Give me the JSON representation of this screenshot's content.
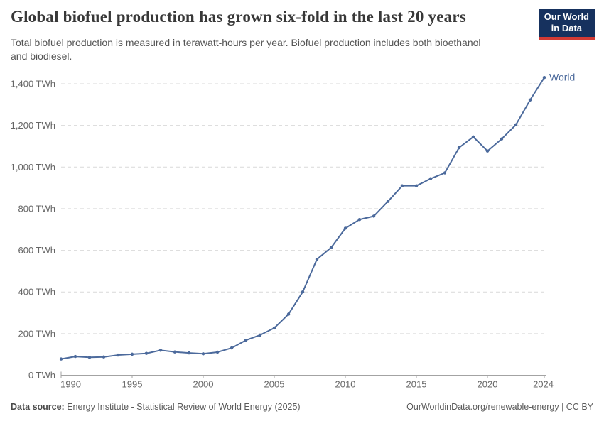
{
  "header": {
    "title": "Global biofuel production has grown six-fold in the last 20 years",
    "subtitle": {
      "line1": "Total biofuel production is measured in terawatt-hours per year. Biofuel production includes both bioethanol",
      "line2": "and biodiesel."
    },
    "logo": {
      "line1": "Our World",
      "line2": "in Data"
    }
  },
  "chart_data": {
    "type": "line",
    "title": "Global biofuel production has grown six-fold in the last 20 years",
    "x": [
      1990,
      1991,
      1992,
      1993,
      1994,
      1995,
      1996,
      1997,
      1998,
      1999,
      2000,
      2001,
      2002,
      2003,
      2004,
      2005,
      2006,
      2007,
      2008,
      2009,
      2010,
      2011,
      2012,
      2013,
      2014,
      2015,
      2016,
      2017,
      2018,
      2019,
      2020,
      2021,
      2022,
      2023,
      2024
    ],
    "series": [
      {
        "name": "World",
        "color": "#4C6A9C",
        "values": [
          78,
          90,
          86,
          88,
          97,
          101,
          105,
          120,
          112,
          107,
          103,
          111,
          131,
          168,
          193,
          227,
          293,
          400,
          557,
          613,
          706,
          748,
          764,
          835,
          910,
          910,
          944,
          972,
          1093,
          1145,
          1077,
          1135,
          1203,
          1322,
          1430
        ]
      }
    ],
    "xlabel": "",
    "ylabel": "",
    "unit": "TWh",
    "xlim": [
      1990,
      2024
    ],
    "ylim": [
      0,
      1400
    ],
    "y_ticks": [
      0,
      200,
      400,
      600,
      800,
      1000,
      1200,
      1400
    ],
    "y_tick_suffix": " TWh",
    "x_ticks": [
      1990,
      1995,
      2000,
      2005,
      2010,
      2015,
      2020,
      2024
    ],
    "grid": "horizontal-dashed",
    "legend": "end-of-line-label"
  },
  "footer": {
    "source_label": "Data source:",
    "source_text": " Energy Institute - Statistical Review of World Energy (2025)",
    "right_text": "OurWorldinData.org/renewable-energy | CC BY"
  },
  "colors": {
    "line": "#4C6A9C",
    "grid": "#d9d9d9",
    "axis": "#a3a3a3",
    "tick_text": "#666666",
    "title_text": "#383838",
    "logo_bg": "#16315e",
    "logo_underline": "#d33a34"
  }
}
